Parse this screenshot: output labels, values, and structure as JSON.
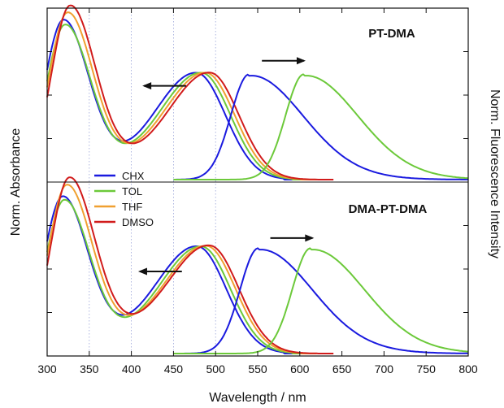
{
  "chart_data": {
    "type": "line",
    "xlabel": "Wavelength / nm",
    "ylabel_left": "Norm.  Absorbance",
    "ylabel_right": "Norm. Fluorescence Intensity",
    "xlim": [
      300,
      800
    ],
    "xticks": [
      300,
      350,
      400,
      450,
      500,
      550,
      600,
      650,
      700,
      750,
      800
    ],
    "grid_x": [
      350,
      400,
      450,
      500
    ],
    "legend": {
      "placement": "center-left",
      "entries": [
        {
          "name": "CHX",
          "color": "#1a1adf"
        },
        {
          "name": "TOL",
          "color": "#6cc93a"
        },
        {
          "name": "THF",
          "color": "#f0a030"
        },
        {
          "name": "DMSO",
          "color": "#d11b1b"
        }
      ]
    },
    "panels": [
      {
        "title": "PT-DMA",
        "absorption": [
          {
            "name": "CHX",
            "peak_uv": 319,
            "peak_uv_value": 0.92,
            "min_x": 385,
            "min_value": 0.12,
            "peak_vis": 478,
            "peak_vis_value": 0.62,
            "end_x": 560
          },
          {
            "name": "TOL",
            "peak_uv": 321,
            "peak_uv_value": 0.89,
            "min_x": 388,
            "min_value": 0.13,
            "peak_vis": 484,
            "peak_vis_value": 0.62,
            "end_x": 570
          },
          {
            "name": "THF",
            "peak_uv": 324,
            "peak_uv_value": 0.96,
            "min_x": 391,
            "min_value": 0.14,
            "peak_vis": 489,
            "peak_vis_value": 0.62,
            "end_x": 580
          },
          {
            "name": "DMSO",
            "peak_uv": 327,
            "peak_uv_value": 1.0,
            "min_x": 395,
            "min_value": 0.15,
            "peak_vis": 494,
            "peak_vis_value": 0.62,
            "end_x": 600
          }
        ],
        "emission": [
          {
            "name": "CHX",
            "peak": 540,
            "value": 0.63
          },
          {
            "name": "TOL",
            "peak": 605,
            "value": 0.63
          }
        ],
        "arrows": [
          {
            "from": 465,
            "to": 415,
            "y": 0.56
          },
          {
            "from": 555,
            "to": 605,
            "y": 0.71
          }
        ]
      },
      {
        "title": "DMA-PT-DMA",
        "absorption": [
          {
            "name": "CHX",
            "peak_uv": 318,
            "peak_uv_value": 0.9,
            "min_x": 385,
            "min_value": 0.14,
            "peak_vis": 479,
            "peak_vis_value": 0.62,
            "end_x": 560
          },
          {
            "name": "TOL",
            "peak_uv": 320,
            "peak_uv_value": 0.88,
            "min_x": 388,
            "min_value": 0.14,
            "peak_vis": 484,
            "peak_vis_value": 0.62,
            "end_x": 570
          },
          {
            "name": "THF",
            "peak_uv": 323,
            "peak_uv_value": 0.96,
            "min_x": 391,
            "min_value": 0.18,
            "peak_vis": 490,
            "peak_vis_value": 0.62,
            "end_x": 580
          },
          {
            "name": "DMSO",
            "peak_uv": 326,
            "peak_uv_value": 1.0,
            "min_x": 395,
            "min_value": 0.2,
            "peak_vis": 494,
            "peak_vis_value": 0.62,
            "end_x": 600
          }
        ],
        "emission": [
          {
            "name": "CHX",
            "peak": 551,
            "value": 0.63
          },
          {
            "name": "TOL",
            "peak": 613,
            "value": 0.63
          }
        ],
        "arrows": [
          {
            "from": 460,
            "to": 410,
            "y": 0.49
          },
          {
            "from": 565,
            "to": 615,
            "y": 0.69
          }
        ]
      }
    ]
  }
}
